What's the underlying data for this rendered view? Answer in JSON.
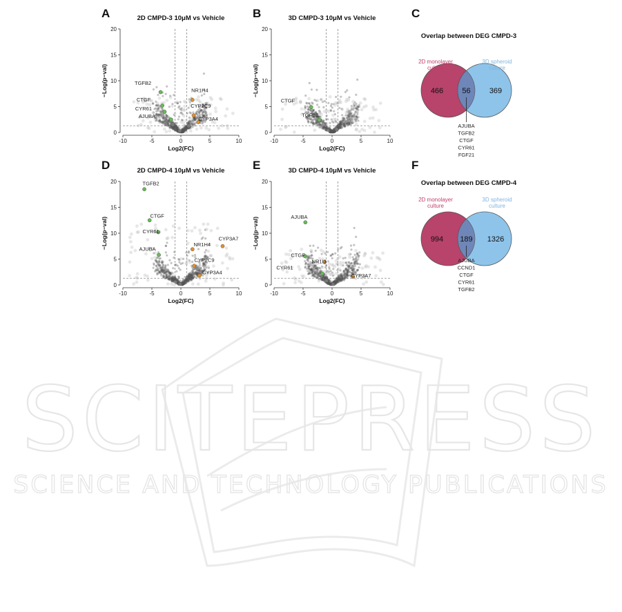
{
  "panels": {
    "A": "A",
    "B": "B",
    "C": "C",
    "D": "D",
    "E": "E",
    "F": "F"
  },
  "chart_data": [
    {
      "id": "A",
      "type": "scatter",
      "title": "2D CMPD-3 10μM vs Vehicle",
      "xlabel": "Log2(FC)",
      "ylabel": "−Log(p−val)",
      "xlim": [
        -10,
        10
      ],
      "ylim": [
        0,
        20
      ],
      "xticks": [
        -10,
        -5,
        0,
        5,
        10
      ],
      "yticks": [
        0,
        5,
        10,
        15,
        20
      ],
      "fc_threshold": [
        -1,
        1
      ],
      "p_threshold": 1.3,
      "labeled_genes": [
        {
          "gene": "TGFB2",
          "x": -3.5,
          "y": 7.8,
          "color": "#66bb55"
        },
        {
          "gene": "CTGF",
          "x": -3.2,
          "y": 5.2,
          "color": "#66bb55"
        },
        {
          "gene": "CYR61",
          "x": -2.8,
          "y": 4.0,
          "color": "#66bb55"
        },
        {
          "gene": "AJUBA",
          "x": -1.7,
          "y": 2.5,
          "color": "#66bb55"
        },
        {
          "gene": "NR1H4",
          "x": 2.0,
          "y": 6.3,
          "color": "#e0902a"
        },
        {
          "gene": "CYP2C9",
          "x": 2.2,
          "y": 3.3,
          "color": "#e0902a"
        },
        {
          "gene": "CYP3A4",
          "x": 3.0,
          "y": 2.0,
          "color": "#e0902a"
        }
      ]
    },
    {
      "id": "B",
      "type": "scatter",
      "title": "3D CMPD-3 10μM vs Vehicle",
      "xlabel": "Log2(FC)",
      "ylabel": "−Log(p−val)",
      "xlim": [
        -10,
        10
      ],
      "ylim": [
        0,
        20
      ],
      "xticks": [
        -10,
        -5,
        0,
        5,
        10
      ],
      "yticks": [
        0,
        5,
        10,
        15,
        20
      ],
      "fc_threshold": [
        -1,
        1
      ],
      "p_threshold": 1.3,
      "labeled_genes": [
        {
          "gene": "CTGF",
          "x": -3.6,
          "y": 4.9,
          "color": "#66bb55"
        },
        {
          "gene": "TGFB2",
          "x": -2.2,
          "y": 2.4,
          "color": "#66bb55"
        }
      ]
    },
    {
      "id": "D",
      "type": "scatter",
      "title": "2D CMPD-4 10μM vs Vehicle",
      "xlabel": "Log2(FC)",
      "ylabel": "−Log(p−val)",
      "xlim": [
        -10,
        10
      ],
      "ylim": [
        0,
        20
      ],
      "xticks": [
        -10,
        -5,
        0,
        5,
        10
      ],
      "yticks": [
        0,
        5,
        10,
        15,
        20
      ],
      "fc_threshold": [
        -1,
        1
      ],
      "p_threshold": 1.3,
      "labeled_genes": [
        {
          "gene": "TGFB2",
          "x": -6.3,
          "y": 18.5,
          "color": "#66bb55"
        },
        {
          "gene": "CTGF",
          "x": -5.4,
          "y": 12.5,
          "color": "#66bb55"
        },
        {
          "gene": "CYR61",
          "x": -3.9,
          "y": 10.2,
          "color": "#66bb55"
        },
        {
          "gene": "AJUBA",
          "x": -3.8,
          "y": 5.8,
          "color": "#66bb55"
        },
        {
          "gene": "NR1H4",
          "x": 2.0,
          "y": 6.9,
          "color": "#e0902a"
        },
        {
          "gene": "CYP3A7",
          "x": 7.2,
          "y": 7.5,
          "color": "#e0902a"
        },
        {
          "gene": "CYP2C9",
          "x": 2.3,
          "y": 3.7,
          "color": "#e0902a"
        },
        {
          "gene": "CYP3A4",
          "x": 3.2,
          "y": 1.8,
          "color": "#e0902a"
        }
      ]
    },
    {
      "id": "E",
      "type": "scatter",
      "title": "3D CMPD-4 10μM vs Vehicle",
      "xlabel": "Log2(FC)",
      "ylabel": "−Log(p−val)",
      "xlim": [
        -10,
        10
      ],
      "ylim": [
        0,
        20
      ],
      "xticks": [
        -10,
        -5,
        0,
        5,
        10
      ],
      "yticks": [
        0,
        5,
        10,
        15,
        20
      ],
      "fc_threshold": [
        -1,
        1
      ],
      "p_threshold": 1.3,
      "labeled_genes": [
        {
          "gene": "AJUBA",
          "x": -4.6,
          "y": 12.1,
          "color": "#66bb55"
        },
        {
          "gene": "CTGF",
          "x": -4.7,
          "y": 5.6,
          "color": "#66bb55"
        },
        {
          "gene": "NR1I3",
          "x": -1.3,
          "y": 4.4,
          "color": "#e0902a"
        },
        {
          "gene": "CYR61",
          "x": -1.7,
          "y": 2.2,
          "color": "#66bb55"
        },
        {
          "gene": "CYP3A7",
          "x": 3.6,
          "y": 1.6,
          "color": "#e0902a"
        }
      ]
    }
  ],
  "venn": [
    {
      "id": "C",
      "title": "Overlap between DEG CMPD-3",
      "left_label": [
        "2D monolayer",
        "culture"
      ],
      "right_label": [
        "3D spheroid",
        "culture"
      ],
      "left_only": "466",
      "overlap": "56",
      "right_only": "369",
      "genes": [
        "AJUBA",
        "TGFB2",
        "CTGF",
        "CYR61",
        "FGF21"
      ],
      "colors": {
        "left": "#b8436b",
        "right": "#8ec4ea",
        "overlap": "#6f86b8",
        "left_text": "#c0406b",
        "right_text": "#7fb4e0"
      }
    },
    {
      "id": "F",
      "title": "Overlap between DEG CMPD-4",
      "left_label": [
        "2D monolayer",
        "culture"
      ],
      "right_label": [
        "3D spheroid",
        "culture"
      ],
      "left_only": "994",
      "overlap": "189",
      "right_only": "1326",
      "genes": [
        "AJUBA",
        "CCND1",
        "CTGF",
        "CYR61",
        "TGFB2"
      ],
      "colors": {
        "left": "#b8436b",
        "right": "#8ec4ea",
        "overlap": "#6f86b8",
        "left_text": "#c0406b",
        "right_text": "#7fb4e0"
      }
    }
  ],
  "watermark": {
    "main": "SCITEPRESS",
    "sub": "SCIENCE AND TECHNOLOGY PUBLICATIONS"
  }
}
